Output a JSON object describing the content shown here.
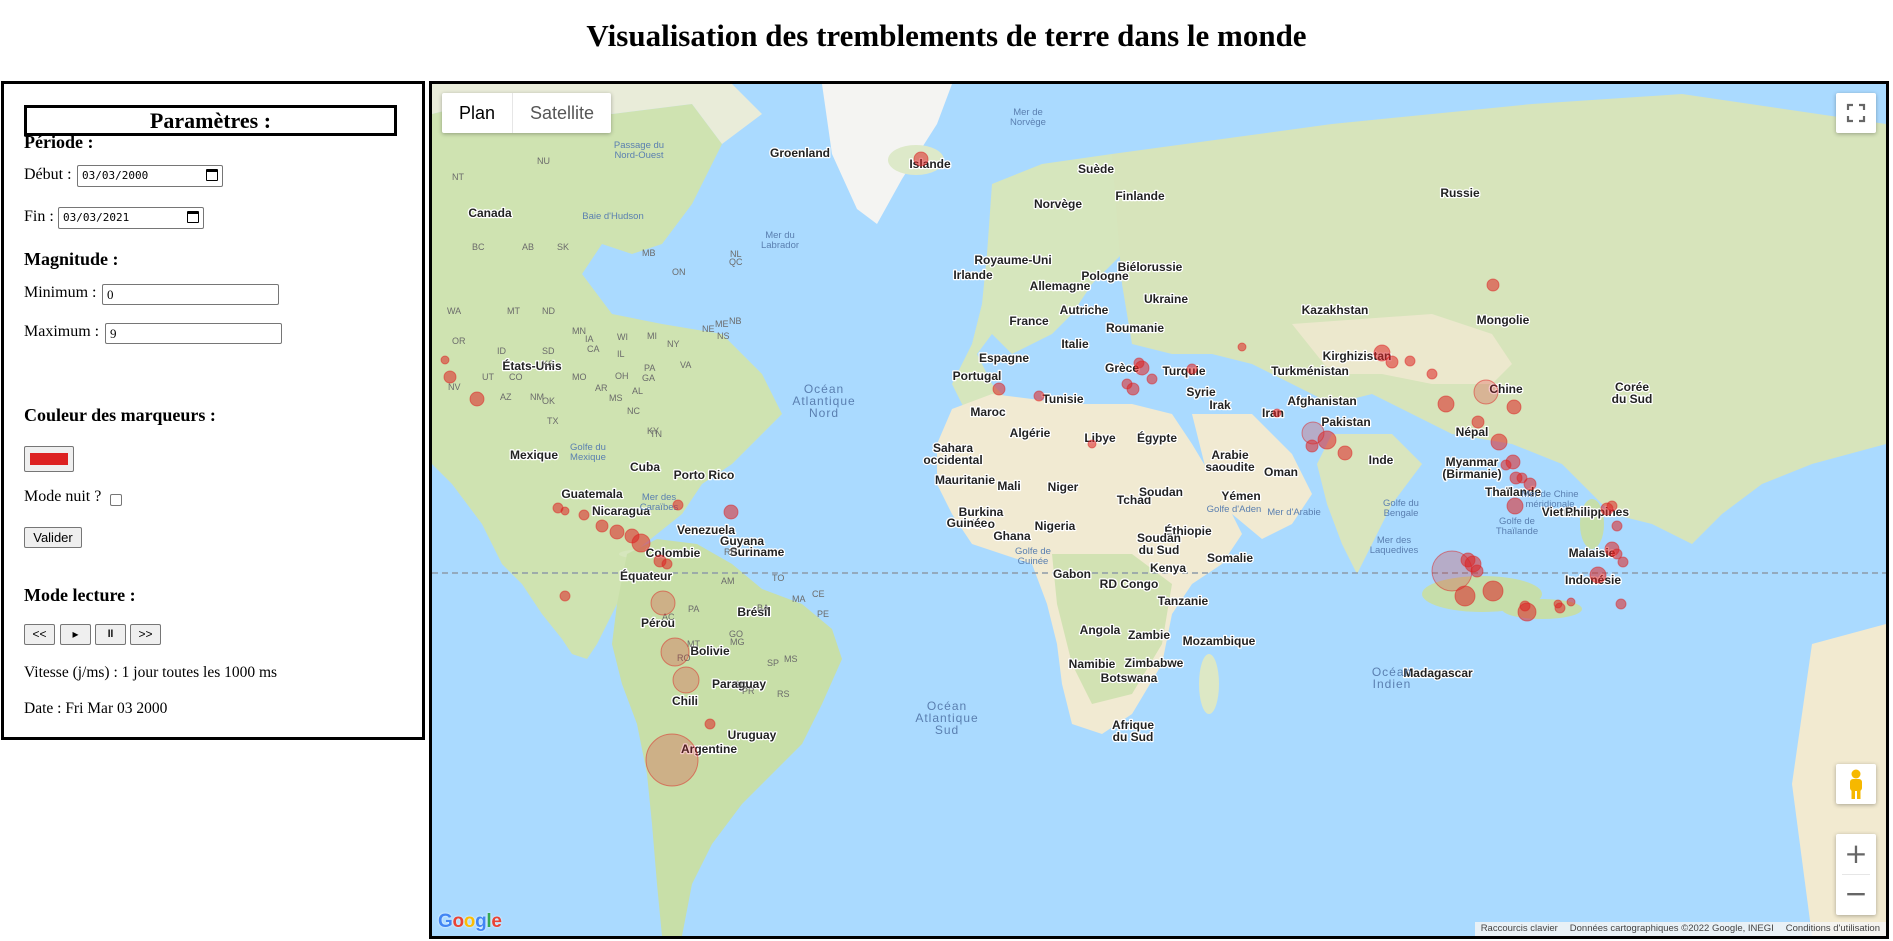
{
  "page": {
    "title": "Visualisation des tremblements de terre dans le monde"
  },
  "params": {
    "title": "Paramètres :",
    "periode_heading": "Période :",
    "debut_label": "Début :",
    "debut_value": "03/03/2000",
    "fin_label": "Fin :",
    "fin_value": "03/03/2021",
    "magnitude_heading": "Magnitude :",
    "min_label": "Minimum :",
    "min_value": "0",
    "max_label": "Maximum :",
    "max_value": "9",
    "color_heading": "Couleur des marqueurs :",
    "marker_color": "#dd2222",
    "night_label": "Mode nuit ?",
    "night_checked": false,
    "submit_label": "Valider",
    "playback_heading": "Mode lecture :",
    "controls": {
      "rewind": "<<",
      "play": "▸",
      "pause": "ll",
      "forward": ">>"
    },
    "speed_text": "Vitesse (j/ms) : 1 jour toutes les 1000 ms",
    "date_text": "Date : Fri Mar 03 2000"
  },
  "map": {
    "type_control": {
      "plan": "Plan",
      "satellite": "Satellite",
      "selected": "plan"
    },
    "logo": "Google",
    "attribution": {
      "shortcuts": "Raccourcis clavier",
      "data": "Données cartographiques ©2022 Google, INEGI",
      "terms": "Conditions d'utilisation"
    },
    "countries": [
      "Groenland",
      "Islande",
      "Suède",
      "Finlande",
      "Russie",
      "Norvège",
      "Canada",
      "Royaume-Uni",
      "Irlande",
      "Biélorussie",
      "Pologne",
      "Allemagne",
      "Ukraine",
      "Kazakhstan",
      "Mongolie",
      "France",
      "Autriche",
      "Roumanie",
      "Italie",
      "Espagne",
      "Grèce",
      "Turquie",
      "Turkménistan",
      "Kirghizistan",
      "Portugal",
      "Syrie",
      "Chine",
      "Tunisie",
      "Irak",
      "Iran",
      "Afghanistan",
      "Maroc",
      "Pakistan",
      "Népal",
      "Algérie",
      "Libye",
      "Égypte",
      "Sahara occidental",
      "Arabie saoudite",
      "Myanmar (Birmanie)",
      "Inde",
      "Oman",
      "Thaïlande",
      "Mauritanie",
      "Mali",
      "Niger",
      "Tchad",
      "Soudan",
      "Yémen",
      "Vietnam",
      "Philippines",
      "Burkina Faso",
      "Guinée",
      "Ghana",
      "Nigeria",
      "Éthiopie",
      "Soudan du Sud",
      "Somalie",
      "Malaisie",
      "Kenya",
      "Gabon",
      "RD Congo",
      "Indonésie",
      "Tanzanie",
      "Angola",
      "Zambie",
      "Mozambique",
      "Namibie",
      "Zimbabwe",
      "Botswana",
      "Madagascar",
      "Afrique du Sud",
      "États-Unis",
      "Mexique",
      "Cuba",
      "Porto Rico",
      "Guatemala",
      "Nicaragua",
      "Venezuela",
      "Guyana",
      "Suriname",
      "Colombie",
      "Équateur",
      "Brésil",
      "Pérou",
      "Bolivie",
      "Paraguay",
      "Chili",
      "Uruguay",
      "Argentine",
      "Corée du Sud"
    ],
    "water_labels": [
      "Mer de Norvège",
      "Passage du Nord-Ouest",
      "Baie d'Hudson",
      "Mer du Labrador",
      "Golfe du Mexique",
      "Mer des Caraïbes",
      "Golfe d'Aden",
      "Mer d'Arabie",
      "Golfe du Bengale",
      "Golfe de Thaïlande",
      "Mer de Chine méridionale",
      "Mer des Laquedives",
      "Golfe de Guinée",
      "Océan Atlantique Nord",
      "Océan Atlantique Sud",
      "Océan Indien"
    ],
    "state_codes": [
      "NT",
      "NU",
      "BC",
      "AB",
      "SK",
      "MB",
      "ON",
      "QC",
      "NL",
      "WA",
      "MT",
      "ND",
      "MN",
      "OR",
      "ID",
      "SD",
      "WI",
      "MI",
      "NY",
      "NE",
      "IA",
      "CA",
      "NV",
      "UT",
      "CO",
      "KS",
      "MO",
      "IL",
      "OH",
      "PA",
      "AZ",
      "NM",
      "OK",
      "TX",
      "AR",
      "MS",
      "GA",
      "AL",
      "VA",
      "KY",
      "TN",
      "NC",
      "ME",
      "NB",
      "NS",
      "RR",
      "AM",
      "PA",
      "AC",
      "RO",
      "MT",
      "GO",
      "MG",
      "MS",
      "SP",
      "RS",
      "SC",
      "PR",
      "BA",
      "TO",
      "MA",
      "CE",
      "PE"
    ]
  }
}
